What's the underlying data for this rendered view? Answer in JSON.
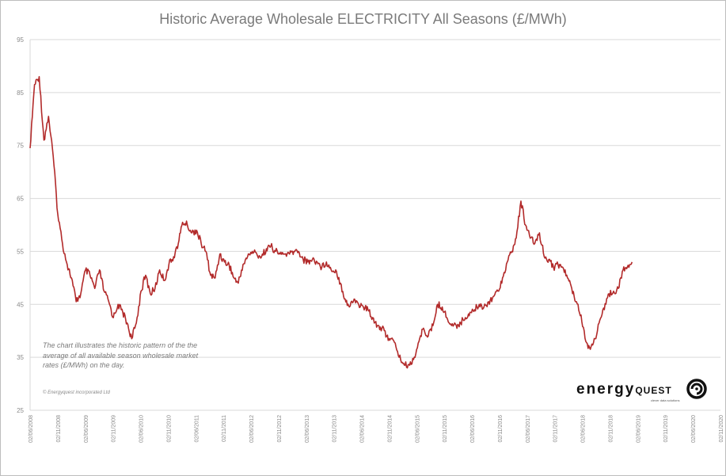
{
  "chart_data": {
    "type": "line",
    "title": "Historic Average Wholesale ELECTRICITY All Seasons (£/MWh)",
    "xlabel": "",
    "ylabel": "",
    "ylim": [
      25,
      95
    ],
    "y_ticks": [
      "95",
      "85",
      "75",
      "65",
      "55",
      "45",
      "35",
      "25"
    ],
    "x_tick_labels": [
      "02/06/2008",
      "02/11/2008",
      "02/06/2009",
      "02/11/2009",
      "02/06/2010",
      "02/11/2010",
      "02/06/2011",
      "02/11/2011",
      "02/06/2012",
      "02/11/2012",
      "02/06/2013",
      "02/11/2013",
      "02/06/2014",
      "02/11/2014",
      "02/06/2015",
      "02/11/2015",
      "02/06/2016",
      "02/11/2016",
      "02/06/2017",
      "02/11/2017",
      "02/06/2018",
      "02/11/2018",
      "02/06/2019",
      "02/11/2019",
      "02/06/2020",
      "02/11/2020"
    ],
    "grid": true,
    "legend": "none",
    "series": [
      {
        "color": "#b22a2a",
        "points": [
          [
            "2008-06-02",
            74.5
          ],
          [
            "2008-07-01",
            86.5
          ],
          [
            "2008-08-01",
            88.0
          ],
          [
            "2008-09-01",
            76.0
          ],
          [
            "2008-10-01",
            80.5
          ],
          [
            "2008-11-01",
            73.0
          ],
          [
            "2008-12-01",
            62.0
          ],
          [
            "2009-01-01",
            56.5
          ],
          [
            "2009-02-01",
            52.5
          ],
          [
            "2009-03-01",
            50.0
          ],
          [
            "2009-04-01",
            45.5
          ],
          [
            "2009-05-01",
            47.0
          ],
          [
            "2009-06-01",
            51.5
          ],
          [
            "2009-07-01",
            50.5
          ],
          [
            "2009-08-01",
            48.0
          ],
          [
            "2009-09-01",
            51.5
          ],
          [
            "2009-10-01",
            47.5
          ],
          [
            "2009-11-01",
            45.5
          ],
          [
            "2009-12-01",
            42.5
          ],
          [
            "2010-01-01",
            45.0
          ],
          [
            "2010-02-01",
            43.5
          ],
          [
            "2010-03-01",
            41.5
          ],
          [
            "2010-04-01",
            38.5
          ],
          [
            "2010-05-01",
            41.5
          ],
          [
            "2010-06-01",
            47.5
          ],
          [
            "2010-07-01",
            50.5
          ],
          [
            "2010-08-01",
            47.0
          ],
          [
            "2010-09-01",
            48.0
          ],
          [
            "2010-10-01",
            51.5
          ],
          [
            "2010-11-01",
            49.5
          ],
          [
            "2010-12-01",
            52.5
          ],
          [
            "2011-01-01",
            54.0
          ],
          [
            "2011-02-01",
            56.5
          ],
          [
            "2011-03-01",
            60.5
          ],
          [
            "2011-04-01",
            60.0
          ],
          [
            "2011-05-01",
            58.5
          ],
          [
            "2011-06-01",
            59.0
          ],
          [
            "2011-07-01",
            56.5
          ],
          [
            "2011-08-01",
            55.0
          ],
          [
            "2011-09-01",
            50.5
          ],
          [
            "2011-10-01",
            50.0
          ],
          [
            "2011-11-01",
            54.5
          ],
          [
            "2011-12-01",
            53.0
          ],
          [
            "2012-01-01",
            52.5
          ],
          [
            "2012-02-01",
            50.0
          ],
          [
            "2012-03-01",
            49.0
          ],
          [
            "2012-04-01",
            52.5
          ],
          [
            "2012-05-01",
            54.0
          ],
          [
            "2012-06-01",
            55.0
          ],
          [
            "2012-07-01",
            54.5
          ],
          [
            "2012-08-01",
            54.0
          ],
          [
            "2012-09-01",
            55.5
          ],
          [
            "2012-10-01",
            56.0
          ],
          [
            "2012-11-01",
            55.0
          ],
          [
            "2012-12-01",
            54.5
          ],
          [
            "2013-01-01",
            54.5
          ],
          [
            "2013-02-01",
            54.5
          ],
          [
            "2013-03-01",
            55.0
          ],
          [
            "2013-04-01",
            55.0
          ],
          [
            "2013-05-01",
            53.5
          ],
          [
            "2013-06-01",
            53.0
          ],
          [
            "2013-07-01",
            53.5
          ],
          [
            "2013-08-01",
            53.0
          ],
          [
            "2013-09-01",
            52.0
          ],
          [
            "2013-10-01",
            53.0
          ],
          [
            "2013-11-01",
            51.5
          ],
          [
            "2013-12-01",
            51.5
          ],
          [
            "2014-01-01",
            49.0
          ],
          [
            "2014-02-01",
            46.0
          ],
          [
            "2014-03-01",
            44.5
          ],
          [
            "2014-04-01",
            46.0
          ],
          [
            "2014-05-01",
            45.0
          ],
          [
            "2014-06-01",
            44.5
          ],
          [
            "2014-07-01",
            44.0
          ],
          [
            "2014-08-01",
            42.5
          ],
          [
            "2014-09-01",
            41.0
          ],
          [
            "2014-10-01",
            40.5
          ],
          [
            "2014-11-01",
            39.0
          ],
          [
            "2014-12-01",
            38.5
          ],
          [
            "2015-01-01",
            37.0
          ],
          [
            "2015-02-01",
            34.5
          ],
          [
            "2015-03-01",
            33.5
          ],
          [
            "2015-04-01",
            33.5
          ],
          [
            "2015-05-01",
            35.0
          ],
          [
            "2015-06-01",
            38.0
          ],
          [
            "2015-07-01",
            40.5
          ],
          [
            "2015-08-01",
            39.0
          ],
          [
            "2015-09-01",
            41.0
          ],
          [
            "2015-10-01",
            45.0
          ],
          [
            "2015-11-01",
            44.5
          ],
          [
            "2015-12-01",
            42.5
          ],
          [
            "2016-01-01",
            41.0
          ],
          [
            "2016-02-01",
            41.0
          ],
          [
            "2016-03-01",
            41.5
          ],
          [
            "2016-04-01",
            42.5
          ],
          [
            "2016-05-01",
            43.5
          ],
          [
            "2016-06-01",
            44.0
          ],
          [
            "2016-07-01",
            45.0
          ],
          [
            "2016-08-01",
            44.5
          ],
          [
            "2016-09-01",
            45.5
          ],
          [
            "2016-10-01",
            46.5
          ],
          [
            "2016-11-01",
            47.5
          ],
          [
            "2016-12-01",
            50.0
          ],
          [
            "2017-01-01",
            53.0
          ],
          [
            "2017-02-01",
            55.0
          ],
          [
            "2017-03-01",
            57.5
          ],
          [
            "2017-04-01",
            64.5
          ],
          [
            "2017-05-01",
            60.0
          ],
          [
            "2017-06-01",
            57.5
          ],
          [
            "2017-07-01",
            56.5
          ],
          [
            "2017-08-01",
            58.5
          ],
          [
            "2017-09-01",
            54.0
          ],
          [
            "2017-10-01",
            53.5
          ],
          [
            "2017-11-01",
            52.0
          ],
          [
            "2017-12-01",
            52.5
          ],
          [
            "2018-01-01",
            52.0
          ],
          [
            "2018-02-01",
            50.0
          ],
          [
            "2018-03-01",
            48.0
          ],
          [
            "2018-04-01",
            45.5
          ],
          [
            "2018-05-01",
            43.0
          ],
          [
            "2018-06-01",
            38.0
          ],
          [
            "2018-07-01",
            36.5
          ],
          [
            "2018-08-01",
            38.5
          ],
          [
            "2018-09-01",
            42.0
          ],
          [
            "2018-10-01",
            44.0
          ],
          [
            "2018-11-01",
            47.0
          ],
          [
            "2018-12-01",
            47.5
          ],
          [
            "2019-01-01",
            48.0
          ],
          [
            "2019-02-01",
            51.5
          ],
          [
            "2019-03-01",
            52.0
          ],
          [
            "2019-04-01",
            53.0
          ]
        ]
      }
    ],
    "x_range": [
      "2008-06-02",
      "2019-04-10"
    ],
    "label_range": [
      "2008-06-02",
      "2020-11-02"
    ]
  },
  "note": {
    "text": "The chart illustrates the historic pattern of the the average of all available season wholesale market rates (£/MWh) on the day.",
    "copyright": "© Energyquest incorporated Ltd"
  },
  "logo": {
    "word": "energy",
    "word2": "QUEST",
    "tagline": "clever data solutions"
  }
}
